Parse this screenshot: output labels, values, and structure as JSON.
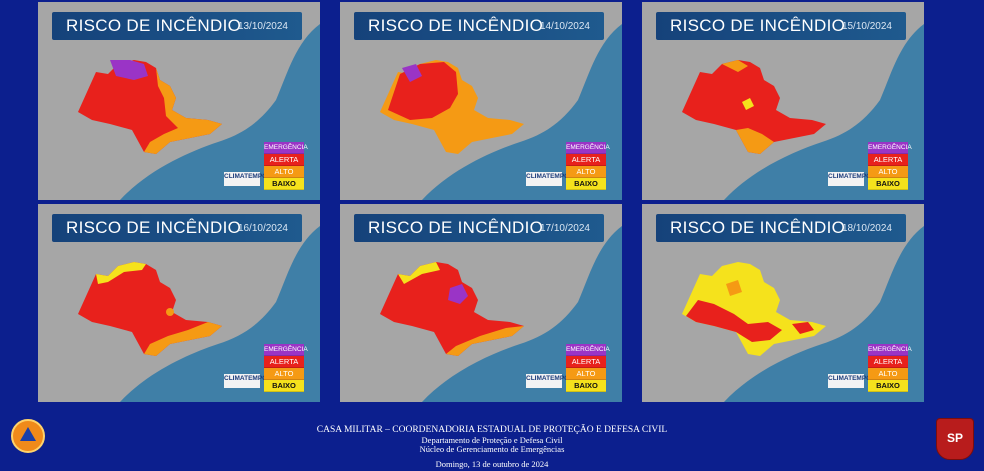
{
  "panels": [
    {
      "title": "RISCO DE INCÊNDIO",
      "date": "13/10/2024"
    },
    {
      "title": "RISCO DE INCÊNDIO",
      "date": "14/10/2024"
    },
    {
      "title": "RISCO DE INCÊNDIO",
      "date": "15/10/2024"
    },
    {
      "title": "RISCO DE INCÊNDIO",
      "date": "16/10/2024"
    },
    {
      "title": "RISCO DE INCÊNDIO",
      "date": "17/10/2024"
    },
    {
      "title": "RISCO DE INCÊNDIO",
      "date": "18/10/2024"
    }
  ],
  "legend": {
    "emergencia": "EMERGÊNCIA",
    "alerta": "ALERTA",
    "alto": "ALTO",
    "baixo": "BAIXO"
  },
  "brand": "CLIMATEMPO",
  "colors": {
    "emergencia": "#9a34c6",
    "alerta": "#e8211c",
    "alto": "#f59a14",
    "baixo": "#f5e21c",
    "background": "#0c1f8e",
    "ocean": "#3f7fa7",
    "land": "#a6a6a6"
  },
  "footer": {
    "line1": "CASA MILITAR – COORDENADORIA ESTADUAL DE PROTEÇÃO E DEFESA CIVIL",
    "line2": "Departamento de Proteção e Defesa Civil",
    "line3": "Núcleo de Gerenciamento de Emergências",
    "date": "Domingo, 13 de outubro de 2024",
    "left_logo": "defesa-civil-logo",
    "right_logo": "sao-paulo-coat-of-arms",
    "right_logo_text": "SP"
  }
}
